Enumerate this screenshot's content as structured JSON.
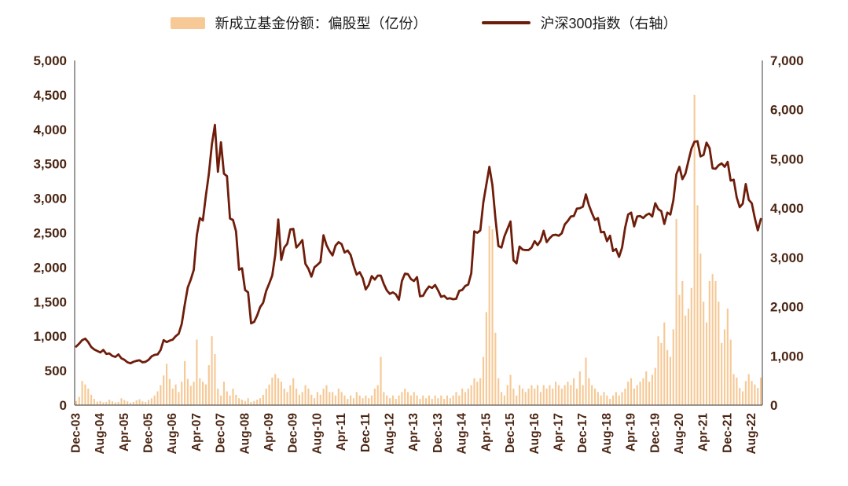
{
  "legend": {
    "bars": {
      "label": "新成立基金份额：偏股型（亿份）",
      "color": "#F6C996"
    },
    "line": {
      "label": "沪深300指数（右轴）",
      "color": "#6F1D0B"
    }
  },
  "chart_data": {
    "type": "bar+line",
    "title": "",
    "x_frequency": "monthly",
    "x_start": "Dec-03",
    "x_end": "Nov-22",
    "x_tick_every": 8,
    "x_tick_labels": [
      "Dec-03",
      "Aug-04",
      "Apr-05",
      "Dec-05",
      "Aug-06",
      "Apr-07",
      "Dec-07",
      "Aug-08",
      "Apr-09",
      "Dec-09",
      "Aug-10",
      "Apr-11",
      "Dec-11",
      "Aug-12",
      "Apr-13",
      "Dec-13",
      "Aug-14",
      "Apr-15",
      "Dec-15",
      "Aug-16",
      "Apr-17",
      "Dec-17",
      "Aug-18",
      "Apr-19",
      "Dec-19",
      "Aug-20",
      "Apr-21",
      "Dec-21",
      "Aug-22"
    ],
    "grid": false,
    "legend_position": "top-center",
    "left_axis": {
      "min": 0,
      "max": 5000,
      "step": 500,
      "tick_labels": [
        "0",
        "500",
        "1,000",
        "1,500",
        "2,000",
        "2,500",
        "3,000",
        "3,500",
        "4,000",
        "4,500",
        "5,000"
      ],
      "series": "新成立基金份额：偏股型（亿份）"
    },
    "right_axis": {
      "min": 0,
      "max": 7000,
      "step": 1000,
      "tick_labels": [
        "0",
        "1,000",
        "2,000",
        "3,000",
        "4,000",
        "5,000",
        "6,000",
        "7,000"
      ],
      "series": "沪深300指数（右轴）"
    },
    "series": [
      {
        "name": "新成立基金份额：偏股型（亿份）",
        "type": "bar",
        "axis": "left",
        "color": "#F6C996",
        "values": [
          60,
          120,
          350,
          300,
          240,
          150,
          90,
          50,
          60,
          40,
          45,
          80,
          55,
          40,
          45,
          100,
          75,
          55,
          35,
          45,
          70,
          85,
          55,
          45,
          75,
          100,
          140,
          200,
          290,
          430,
          600,
          380,
          240,
          300,
          190,
          340,
          640,
          380,
          280,
          340,
          950,
          390,
          340,
          300,
          580,
          1000,
          740,
          240,
          140,
          340,
          200,
          140,
          240,
          150,
          100,
          80,
          60,
          100,
          45,
          60,
          80,
          100,
          150,
          240,
          300,
          400,
          450,
          390,
          340,
          240,
          190,
          290,
          390,
          240,
          150,
          190,
          290,
          240,
          150,
          100,
          190,
          150,
          240,
          290,
          190,
          190,
          140,
          240,
          190,
          140,
          90,
          140,
          100,
          190,
          140,
          100,
          140,
          100,
          140,
          240,
          290,
          700,
          190,
          140,
          100,
          140,
          90,
          140,
          190,
          240,
          190,
          140,
          190,
          140,
          90,
          140,
          100,
          140,
          90,
          140,
          100,
          140,
          90,
          140,
          100,
          140,
          190,
          140,
          240,
          190,
          240,
          290,
          390,
          340,
          390,
          700,
          1350,
          2600,
          2550,
          1050,
          390,
          190,
          140,
          290,
          440,
          240,
          140,
          290,
          240,
          190,
          240,
          290,
          240,
          290,
          190,
          290,
          240,
          290,
          240,
          340,
          290,
          240,
          290,
          340,
          290,
          390,
          240,
          490,
          290,
          690,
          390,
          290,
          240,
          190,
          140,
          190,
          140,
          90,
          140,
          190,
          140,
          190,
          240,
          340,
          390,
          240,
          290,
          340,
          390,
          490,
          340,
          440,
          540,
          1000,
          900,
          1200,
          800,
          700,
          1100,
          2700,
          1600,
          1800,
          1300,
          1400,
          1700,
          4500,
          2900,
          2200,
          1500,
          1200,
          1800,
          1900,
          1800,
          1500,
          900,
          1100,
          1400,
          950,
          450,
          400,
          250,
          200,
          350,
          450,
          350,
          300,
          250,
          400
        ]
      },
      {
        "name": "沪深300指数（右轴）",
        "type": "line",
        "axis": "right",
        "color": "#6F1D0B",
        "values": [
          1190,
          1250,
          1320,
          1350,
          1280,
          1180,
          1130,
          1100,
          1070,
          1120,
          1040,
          1050,
          1000,
          980,
          1030,
          950,
          920,
          870,
          850,
          880,
          900,
          910,
          870,
          880,
          920,
          990,
          1020,
          1030,
          1120,
          1320,
          1280,
          1310,
          1330,
          1400,
          1450,
          1650,
          2040,
          2390,
          2550,
          2750,
          3450,
          3800,
          3750,
          4250,
          4700,
          5300,
          5690,
          4740,
          5340,
          4700,
          4650,
          3790,
          3760,
          3530,
          2750,
          2780,
          2340,
          2290,
          1660,
          1690,
          1820,
          1990,
          2080,
          2320,
          2470,
          2630,
          3050,
          3770,
          2950,
          3200,
          3280,
          3570,
          3580,
          3200,
          3270,
          3350,
          2870,
          2770,
          2610,
          2800,
          2850,
          2910,
          3450,
          3250,
          3130,
          3040,
          3240,
          3310,
          3270,
          3100,
          3140,
          3050,
          2830,
          2650,
          2700,
          2580,
          2350,
          2440,
          2620,
          2550,
          2630,
          2630,
          2460,
          2330,
          2260,
          2290,
          2250,
          2140,
          2520,
          2670,
          2660,
          2560,
          2520,
          2600,
          2210,
          2220,
          2330,
          2410,
          2380,
          2440,
          2330,
          2200,
          2220,
          2160,
          2170,
          2150,
          2160,
          2320,
          2340,
          2420,
          2450,
          2680,
          3530,
          3500,
          3550,
          4120,
          4480,
          4840,
          4470,
          3800,
          3230,
          3200,
          3430,
          3580,
          3730,
          2940,
          2880,
          3220,
          3160,
          3150,
          3150,
          3200,
          3330,
          3250,
          3340,
          3540,
          3310,
          3390,
          3450,
          3460,
          3440,
          3490,
          3670,
          3740,
          3830,
          3840,
          3990,
          4000,
          4030,
          4280,
          4060,
          3900,
          3760,
          3800,
          3510,
          3520,
          3330,
          3440,
          3130,
          3170,
          3010,
          3200,
          3600,
          3870,
          3910,
          3630,
          3830,
          3840,
          3800,
          3860,
          3890,
          3830,
          4100,
          3980,
          3940,
          3680,
          3910,
          3870,
          4160,
          4690,
          4840,
          4590,
          4700,
          4960,
          5210,
          5350,
          5360,
          5050,
          5080,
          5330,
          5220,
          4810,
          4800,
          4870,
          4910,
          4840,
          4940,
          4560,
          4580,
          4220,
          4020,
          4090,
          4490,
          4170,
          4100,
          3800,
          3550,
          3780
        ]
      }
    ]
  }
}
